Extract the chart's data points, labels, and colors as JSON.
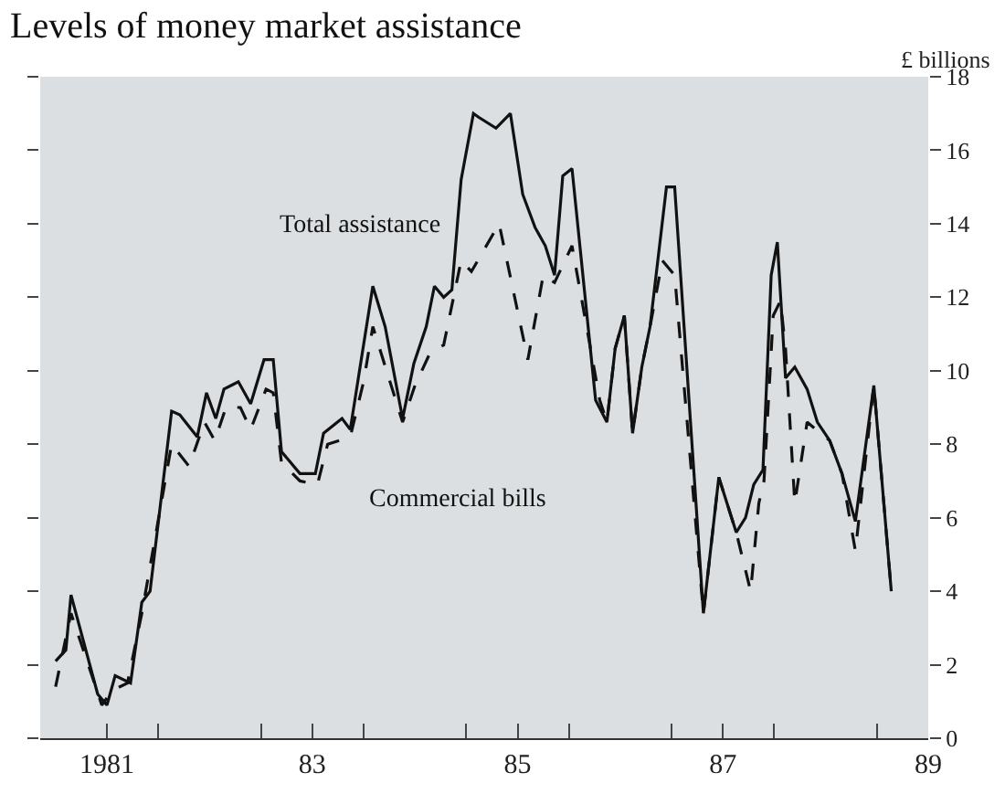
{
  "chart_data": {
    "type": "line",
    "title": "Levels of money market assistance",
    "ylabel": "£ billions",
    "series": [
      {
        "name": "Total assistance",
        "color": "#111111",
        "line_style": "solid",
        "x": [
          1980.5,
          1980.6,
          1980.65,
          1980.91,
          1981.0,
          1981.08,
          1981.23,
          1981.34,
          1981.42,
          1981.63,
          1981.71,
          1981.88,
          1981.97,
          1982.06,
          1982.14,
          1982.28,
          1982.4,
          1982.53,
          1982.62,
          1982.7,
          1982.79,
          1982.88,
          1983.03,
          1983.11,
          1983.29,
          1983.37,
          1983.46,
          1983.59,
          1983.71,
          1983.88,
          1983.99,
          1984.11,
          1984.19,
          1984.28,
          1984.36,
          1984.45,
          1984.57,
          1984.62,
          1984.79,
          1984.93,
          1985.05,
          1985.17,
          1985.27,
          1985.36,
          1985.44,
          1985.53,
          1985.76,
          1985.87,
          1985.95,
          1986.04,
          1986.12,
          1986.21,
          1986.29,
          1986.45,
          1986.53,
          1986.81,
          1986.96,
          1987.13,
          1987.22,
          1987.3,
          1987.39,
          1987.47,
          1987.53,
          1987.61,
          1987.7,
          1987.82,
          1987.92,
          1988.04,
          1988.16,
          1988.29,
          1988.47,
          1988.64
        ],
        "values": [
          2.1,
          2.4,
          3.9,
          1.2,
          0.9,
          1.7,
          1.5,
          3.7,
          4.0,
          8.9,
          8.8,
          8.2,
          9.4,
          8.7,
          9.5,
          9.7,
          9.1,
          10.3,
          10.3,
          7.8,
          7.5,
          7.2,
          7.2,
          8.3,
          8.7,
          8.4,
          10.0,
          12.3,
          11.2,
          8.7,
          10.2,
          11.2,
          12.3,
          12.0,
          12.2,
          15.2,
          17.0,
          16.9,
          16.6,
          17.0,
          14.8,
          13.9,
          13.4,
          12.6,
          15.3,
          15.5,
          9.2,
          8.6,
          10.6,
          11.5,
          8.3,
          10.1,
          11.2,
          15.0,
          15.0,
          3.4,
          7.1,
          5.6,
          6.0,
          6.9,
          7.3,
          12.6,
          13.5,
          9.8,
          10.1,
          9.5,
          8.6,
          8.1,
          7.2,
          5.9,
          9.6,
          4.0
        ]
      },
      {
        "name": "Commercial bills",
        "color": "#111111",
        "line_style": "dashed",
        "x": [
          1980.5,
          1980.65,
          1980.95,
          1981.05,
          1981.2,
          1981.34,
          1981.63,
          1981.8,
          1981.95,
          1982.05,
          1982.16,
          1982.3,
          1982.4,
          1982.55,
          1982.62,
          1982.7,
          1982.88,
          1983.05,
          1983.15,
          1983.37,
          1983.5,
          1983.59,
          1983.88,
          1984.0,
          1984.15,
          1984.28,
          1984.45,
          1984.55,
          1984.82,
          1985.1,
          1985.25,
          1985.36,
          1985.53,
          1985.73,
          1985.8,
          1985.87,
          1985.95,
          1986.04,
          1986.12,
          1986.21,
          1986.29,
          1986.41,
          1986.53,
          1986.81,
          1986.96,
          1987.13,
          1987.27,
          1987.35,
          1987.4,
          1987.49,
          1987.56,
          1987.61,
          1987.7,
          1987.82,
          1987.95,
          1988.04,
          1988.16,
          1988.29,
          1988.47,
          1988.64
        ],
        "values": [
          1.4,
          3.4,
          0.9,
          1.3,
          1.5,
          3.4,
          8.0,
          7.4,
          8.6,
          8.1,
          9.0,
          9.0,
          8.4,
          9.5,
          9.4,
          7.5,
          7.0,
          6.9,
          8.0,
          8.2,
          9.7,
          11.2,
          8.6,
          9.6,
          10.5,
          10.7,
          13.0,
          12.7,
          14.0,
          10.3,
          12.6,
          12.4,
          13.4,
          10.3,
          9.2,
          8.6,
          10.6,
          11.5,
          8.3,
          10.1,
          11.2,
          13.0,
          12.6,
          3.4,
          7.1,
          5.6,
          4.0,
          6.4,
          7.0,
          11.5,
          11.9,
          10.6,
          6.4,
          8.6,
          8.3,
          8.1,
          7.2,
          5.1,
          9.6,
          4.0
        ]
      }
    ],
    "xlim": [
      1980.35,
      1989.0
    ],
    "xticks": [
      {
        "value": 1981,
        "label": "1981"
      },
      {
        "value": 1981.5,
        "label": null
      },
      {
        "value": 1982.5,
        "label": null
      },
      {
        "value": 1983,
        "label": "83"
      },
      {
        "value": 1983.5,
        "label": null
      },
      {
        "value": 1984.5,
        "label": null
      },
      {
        "value": 1985,
        "label": "85"
      },
      {
        "value": 1985.5,
        "label": null
      },
      {
        "value": 1986.5,
        "label": null
      },
      {
        "value": 1987,
        "label": "87"
      },
      {
        "value": 1987.5,
        "label": null
      },
      {
        "value": 1988.5,
        "label": null
      },
      {
        "value": 1989,
        "label": "89"
      }
    ],
    "ylim": [
      0,
      18
    ],
    "yticks": [
      0,
      2,
      4,
      6,
      8,
      10,
      12,
      14,
      16,
      18
    ],
    "grid": false,
    "legend": false,
    "marker": "none"
  }
}
